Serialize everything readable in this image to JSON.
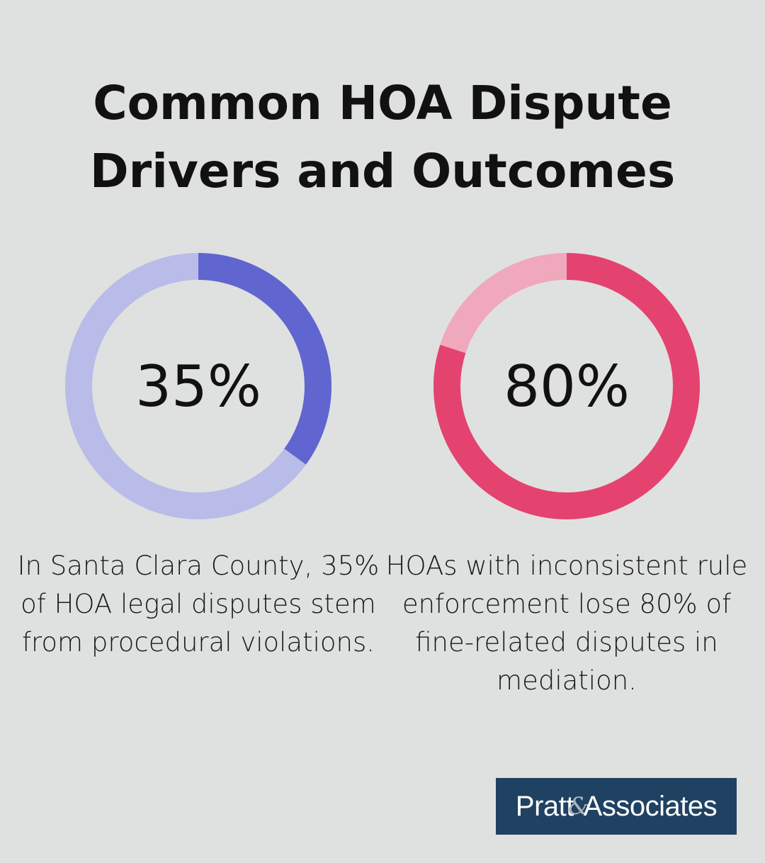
{
  "title_line1": "Common HOA Dispute",
  "title_line2": "Drivers and Outcomes",
  "chart_data": [
    {
      "type": "pie",
      "variant": "donut",
      "value": 35,
      "max": 100,
      "label": "35%",
      "caption": "In Santa Clara County, 35% of HOA legal disputes stem from procedural violations.",
      "colors": {
        "value": "#6065d0",
        "remainder": "#b9bce8"
      }
    },
    {
      "type": "pie",
      "variant": "donut",
      "value": 80,
      "max": 100,
      "label": "80%",
      "caption": "HOAs with inconsistent rule enforcement lose 80% of fine-related disputes in mediation.",
      "colors": {
        "value": "#e4436f",
        "remainder": "#f0a8bd"
      }
    }
  ],
  "logo": {
    "text_left": "Pratt",
    "text_amp": "&",
    "text_right": "Associates",
    "background": "#1f4262"
  }
}
